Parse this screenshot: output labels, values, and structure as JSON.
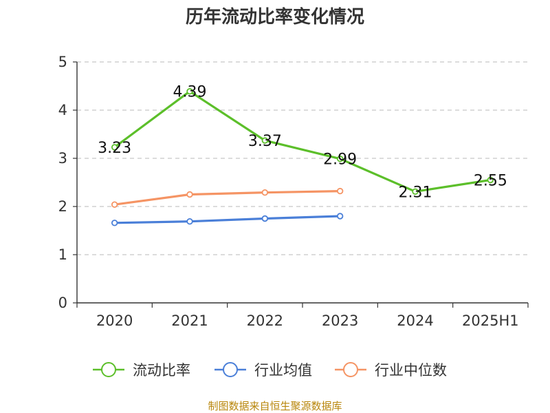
{
  "chart_data": {
    "type": "line",
    "title": "历年流动比率变化情况",
    "categories": [
      "2020",
      "2021",
      "2022",
      "2023",
      "2024",
      "2025H1"
    ],
    "ylim": [
      0,
      5
    ],
    "yticks": [
      0,
      1,
      2,
      3,
      4,
      5
    ],
    "grid": true,
    "legend_position": "bottom",
    "series": [
      {
        "name": "流动比率",
        "color": "#5cbf2a",
        "values": [
          3.23,
          4.39,
          3.37,
          2.99,
          2.31,
          2.55
        ],
        "labels": [
          "3.23",
          "4.39",
          "3.37",
          "2.99",
          "2.31",
          "2.55"
        ],
        "show_labels": true
      },
      {
        "name": "行业均值",
        "color": "#4a7fd8",
        "values": [
          1.66,
          1.69,
          1.75,
          1.8,
          null,
          null
        ],
        "show_labels": false
      },
      {
        "name": "行业中位数",
        "color": "#f59464",
        "values": [
          2.04,
          2.25,
          2.29,
          2.32,
          null,
          null
        ],
        "show_labels": false
      }
    ],
    "source": "制图数据来自恒生聚源数据库"
  }
}
